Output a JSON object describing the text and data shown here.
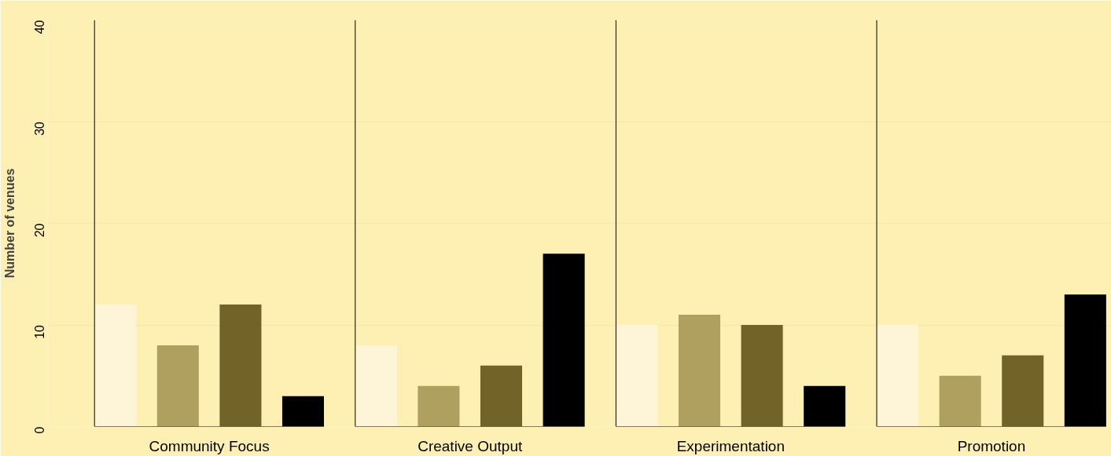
{
  "chart_data": {
    "type": "bar",
    "ylabel": "Number of venues",
    "categories": [
      "Community Focus",
      "Creative Output",
      "Experimentation",
      "Promotion"
    ],
    "series": [
      {
        "color": "#fef5d8",
        "values": [
          12,
          8,
          10,
          10
        ]
      },
      {
        "color": "#afa060",
        "values": [
          8,
          4,
          11,
          5
        ]
      },
      {
        "color": "#726428",
        "values": [
          12,
          6,
          10,
          7
        ]
      },
      {
        "color": "#000000",
        "values": [
          3,
          17,
          4,
          13
        ]
      }
    ],
    "ylim": [
      0,
      40
    ],
    "yticks": [
      0,
      10,
      20,
      30,
      40
    ],
    "grid": "y"
  }
}
